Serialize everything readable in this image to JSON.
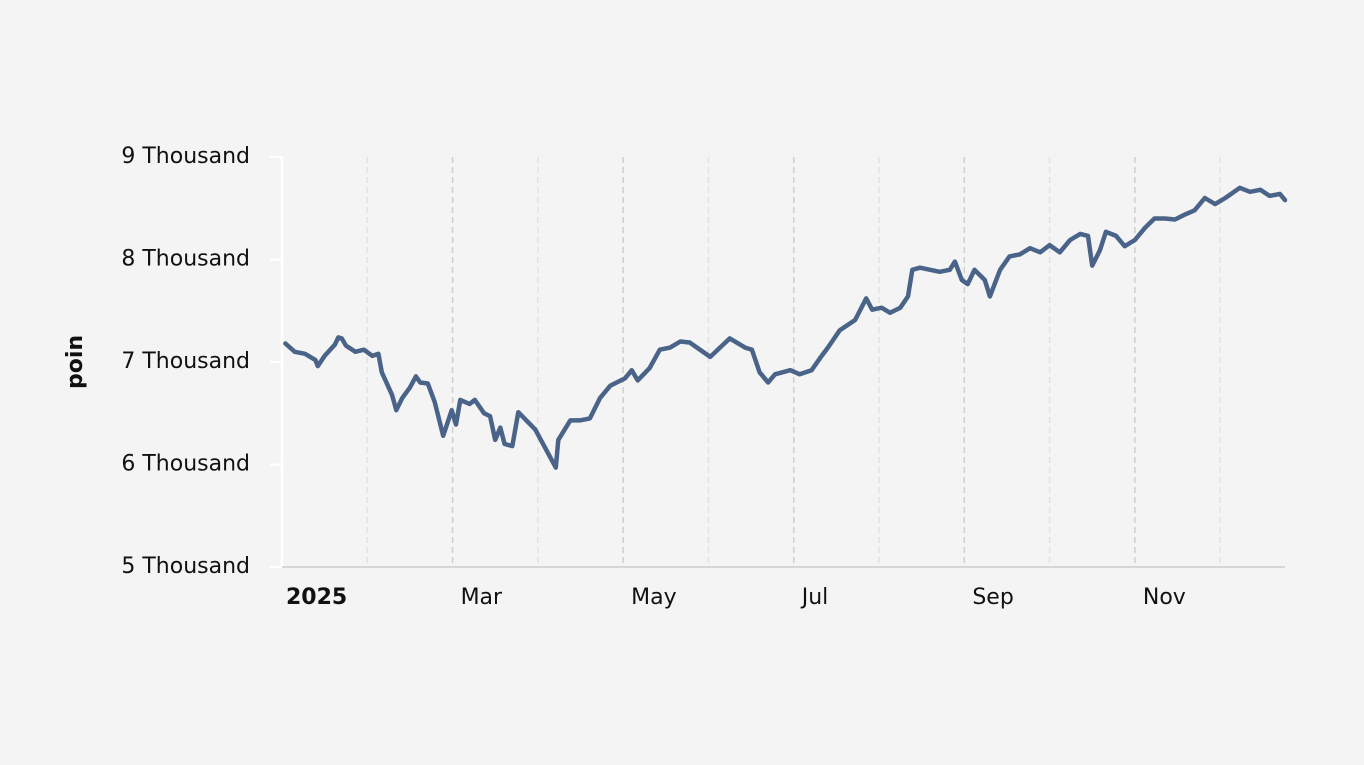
{
  "chart_data": {
    "type": "line",
    "ylabel": "poin",
    "x": [
      1.04,
      1.15,
      1.27,
      1.39,
      1.42,
      1.5,
      1.62,
      1.66,
      1.7,
      1.75,
      1.86,
      1.96,
      2.06,
      2.13,
      2.17,
      2.29,
      2.34,
      2.41,
      2.5,
      2.57,
      2.62,
      2.71,
      2.79,
      2.89,
      2.99,
      3.04,
      3.09,
      3.2,
      3.26,
      3.37,
      3.44,
      3.5,
      3.56,
      3.61,
      3.7,
      3.77,
      3.97,
      4.21,
      4.24,
      4.38,
      4.49,
      4.61,
      4.73,
      4.85,
      5.02,
      5.1,
      5.17,
      5.31,
      5.43,
      5.55,
      5.67,
      5.78,
      6.02,
      6.25,
      6.43,
      6.51,
      6.6,
      6.7,
      6.78,
      6.96,
      7.07,
      7.21,
      7.31,
      7.4,
      7.54,
      7.72,
      7.85,
      7.92,
      8.03,
      8.13,
      8.25,
      8.34,
      8.39,
      8.48,
      8.6,
      8.71,
      8.83,
      8.89,
      8.97,
      9.04,
      9.12,
      9.24,
      9.3,
      9.42,
      9.53,
      9.65,
      9.77,
      9.89,
      10.0,
      10.12,
      10.24,
      10.36,
      10.45,
      10.5,
      10.59,
      10.66,
      10.78,
      10.88,
      11.0,
      11.12,
      11.23,
      11.35,
      11.47,
      11.59,
      11.7,
      11.82,
      11.94,
      12.06,
      12.23,
      12.35,
      12.47,
      12.58,
      12.7,
      12.76
    ],
    "series": [
      {
        "name": "poin",
        "color": "#4a6388",
        "values": [
          7180,
          7100,
          7080,
          7020,
          6960,
          7060,
          7170,
          7240,
          7230,
          7160,
          7100,
          7120,
          7060,
          7080,
          6900,
          6680,
          6530,
          6650,
          6750,
          6860,
          6800,
          6790,
          6610,
          6280,
          6530,
          6390,
          6630,
          6590,
          6630,
          6500,
          6470,
          6240,
          6360,
          6200,
          6180,
          6510,
          6340,
          5970,
          6240,
          6430,
          6430,
          6450,
          6650,
          6770,
          6840,
          6920,
          6820,
          6940,
          7120,
          7140,
          7200,
          7190,
          7050,
          7230,
          7140,
          7120,
          6900,
          6800,
          6880,
          6920,
          6880,
          6920,
          7040,
          7140,
          7310,
          7410,
          7620,
          7510,
          7530,
          7480,
          7530,
          7640,
          7900,
          7920,
          7900,
          7880,
          7900,
          7980,
          7800,
          7760,
          7900,
          7800,
          7640,
          7900,
          8030,
          8050,
          8110,
          8070,
          8140,
          8070,
          8190,
          8250,
          8230,
          7940,
          8090,
          8270,
          8230,
          8130,
          8190,
          8310,
          8400,
          8400,
          8390,
          8440,
          8480,
          8600,
          8540,
          8600,
          8700,
          8660,
          8680,
          8620,
          8640,
          8580
        ]
      }
    ],
    "xlim": [
      1,
      12.76
    ],
    "xticks": [
      {
        "value": 1,
        "label": "2025"
      },
      {
        "value": 3,
        "label": "Mar"
      },
      {
        "value": 5,
        "label": "May"
      },
      {
        "value": 7,
        "label": "Jul"
      },
      {
        "value": 9,
        "label": "Sep"
      },
      {
        "value": 11,
        "label": "Nov"
      }
    ],
    "xminorticks": [
      2,
      4,
      6,
      8,
      10,
      12
    ],
    "ylim": [
      5000,
      9000
    ],
    "yticks": [
      {
        "value": 5000,
        "label": "5 Thousand"
      },
      {
        "value": 6000,
        "label": "6 Thousand"
      },
      {
        "value": 7000,
        "label": "7 Thousand"
      },
      {
        "value": 8000,
        "label": "8 Thousand"
      },
      {
        "value": 9000,
        "label": "9 Thousand"
      }
    ],
    "grid": true
  }
}
